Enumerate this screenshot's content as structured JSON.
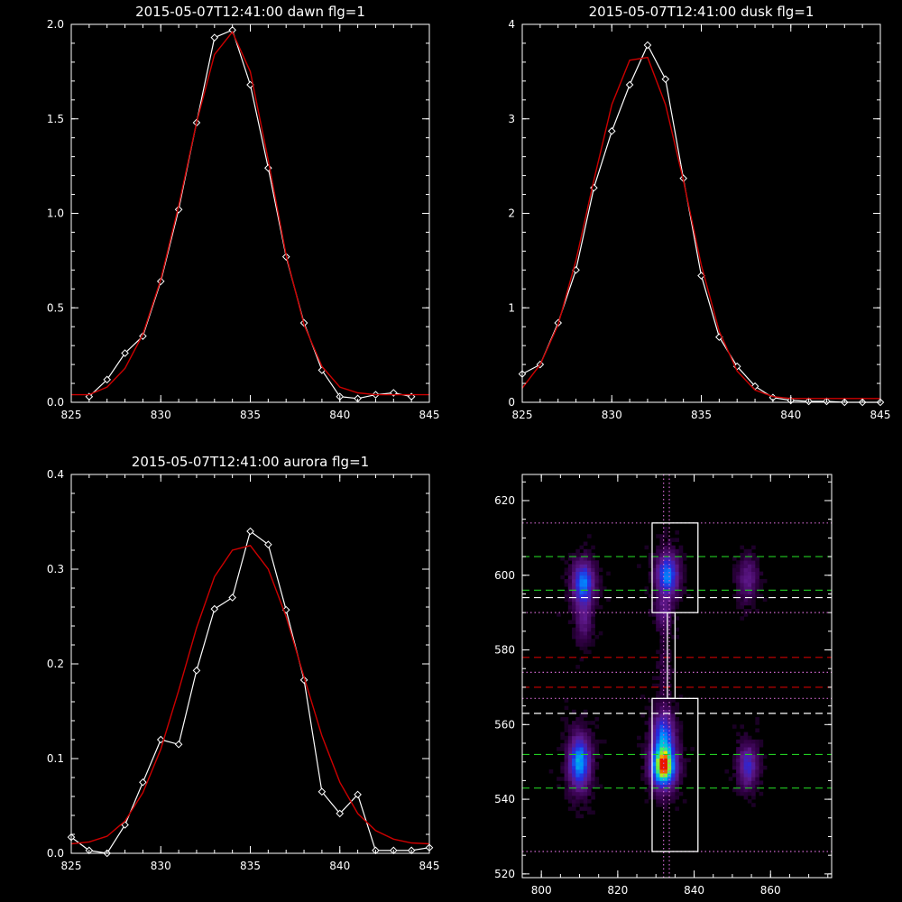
{
  "chart_data": [
    {
      "type": "line",
      "title": "2015-05-07T12:41:00 dawn flg=1",
      "xlim": [
        825,
        845
      ],
      "ylim": [
        0,
        2.0
      ],
      "xticks": [
        "825",
        "830",
        "835",
        "840",
        "845"
      ],
      "yticks": [
        "0.0",
        "0.5",
        "1.0",
        "1.5",
        "2.0"
      ],
      "xticks_v": [
        825,
        830,
        835,
        840,
        845
      ],
      "yticks_v": [
        0,
        0.5,
        1.0,
        1.5,
        2.0
      ],
      "series": [
        {
          "color": "#ffffff",
          "marker": "diamond",
          "x": [
            826,
            827,
            828,
            829,
            830,
            831,
            832,
            833,
            834,
            835,
            836,
            837,
            838,
            839,
            840,
            841,
            842,
            843,
            844
          ],
          "y": [
            0.03,
            0.12,
            0.26,
            0.35,
            0.64,
            1.02,
            1.48,
            1.93,
            1.97,
            1.68,
            1.24,
            0.77,
            0.42,
            0.17,
            0.03,
            0.02,
            0.04,
            0.05,
            0.03
          ]
        },
        {
          "color": "#cc0000",
          "marker": "none",
          "x": [
            825,
            826,
            827,
            828,
            829,
            830,
            831,
            832,
            833,
            834,
            835,
            836,
            837,
            838,
            839,
            840,
            841,
            842,
            843,
            844,
            845
          ],
          "y": [
            0.04,
            0.04,
            0.08,
            0.18,
            0.36,
            0.65,
            1.04,
            1.48,
            1.84,
            1.96,
            1.75,
            1.28,
            0.78,
            0.41,
            0.19,
            0.08,
            0.05,
            0.04,
            0.04,
            0.04,
            0.04
          ]
        }
      ]
    },
    {
      "type": "line",
      "title": "2015-05-07T12:41:00 dusk flg=1",
      "xlim": [
        825,
        845
      ],
      "ylim": [
        0,
        4
      ],
      "xticks": [
        "825",
        "830",
        "835",
        "840",
        "845"
      ],
      "yticks": [
        "0",
        "1",
        "2",
        "3",
        "4"
      ],
      "xticks_v": [
        825,
        830,
        835,
        840,
        845
      ],
      "yticks_v": [
        0,
        1,
        2,
        3,
        4
      ],
      "series": [
        {
          "color": "#ffffff",
          "marker": "diamond",
          "x": [
            825,
            826,
            827,
            828,
            829,
            830,
            831,
            832,
            833,
            834,
            835,
            836,
            837,
            838,
            839,
            840,
            841,
            842,
            843,
            844,
            845
          ],
          "y": [
            0.3,
            0.4,
            0.84,
            1.4,
            2.27,
            2.87,
            3.36,
            3.78,
            3.42,
            2.37,
            1.34,
            0.69,
            0.38,
            0.17,
            0.05,
            0.02,
            0.01,
            0.01,
            0.0,
            0.0,
            0.0
          ]
        },
        {
          "color": "#cc0000",
          "marker": "none",
          "x": [
            825,
            826,
            827,
            828,
            829,
            830,
            831,
            832,
            833,
            834,
            835,
            836,
            837,
            838,
            839,
            840,
            841,
            842,
            843,
            844,
            845
          ],
          "y": [
            0.15,
            0.4,
            0.82,
            1.5,
            2.35,
            3.15,
            3.62,
            3.65,
            3.15,
            2.35,
            1.45,
            0.75,
            0.33,
            0.13,
            0.06,
            0.04,
            0.04,
            0.04,
            0.04,
            0.04,
            0.04
          ]
        }
      ]
    },
    {
      "type": "line",
      "title": "2015-05-07T12:41:00 aurora flg=1",
      "xlim": [
        825,
        845
      ],
      "ylim": [
        0,
        0.4
      ],
      "xticks": [
        "825",
        "830",
        "835",
        "840",
        "845"
      ],
      "yticks": [
        "0.0",
        "0.1",
        "0.2",
        "0.3",
        "0.4"
      ],
      "xticks_v": [
        825,
        830,
        835,
        840,
        845
      ],
      "yticks_v": [
        0,
        0.1,
        0.2,
        0.3,
        0.4
      ],
      "series": [
        {
          "color": "#ffffff",
          "marker": "diamond",
          "x": [
            825,
            826,
            827,
            828,
            829,
            830,
            831,
            832,
            833,
            834,
            835,
            836,
            837,
            838,
            839,
            840,
            841,
            842,
            843,
            844,
            845
          ],
          "y": [
            0.017,
            0.003,
            0.0,
            0.03,
            0.075,
            0.12,
            0.115,
            0.193,
            0.258,
            0.27,
            0.34,
            0.326,
            0.257,
            0.183,
            0.065,
            0.042,
            0.062,
            0.003,
            0.003,
            0.003,
            0.006
          ]
        },
        {
          "color": "#cc0000",
          "marker": "none",
          "x": [
            825,
            826,
            827,
            828,
            829,
            830,
            831,
            832,
            833,
            834,
            835,
            836,
            837,
            838,
            839,
            840,
            841,
            842,
            843,
            844,
            845
          ],
          "y": [
            0.01,
            0.012,
            0.018,
            0.034,
            0.064,
            0.11,
            0.172,
            0.238,
            0.292,
            0.32,
            0.325,
            0.3,
            0.25,
            0.186,
            0.124,
            0.075,
            0.042,
            0.024,
            0.015,
            0.011,
            0.01
          ]
        }
      ]
    },
    {
      "type": "heatmap",
      "title": "",
      "xlim": [
        795,
        876
      ],
      "ylim": [
        519,
        627
      ],
      "xticks": [
        "800",
        "820",
        "840",
        "860"
      ],
      "yticks": [
        "520",
        "540",
        "560",
        "580",
        "600",
        "620"
      ],
      "xticks_v": [
        800,
        820,
        840,
        860
      ],
      "yticks_v": [
        520,
        540,
        560,
        580,
        600,
        620
      ],
      "blobs": [
        {
          "x": 810,
          "y": 550,
          "sx": 2.0,
          "sy": 5.0,
          "a": 0.62
        },
        {
          "x": 811,
          "y": 598,
          "sx": 2.0,
          "sy": 4.0,
          "a": 0.55
        },
        {
          "x": 811,
          "y": 588,
          "sx": 1.5,
          "sy": 4.0,
          "a": 0.22
        },
        {
          "x": 832,
          "y": 549,
          "sx": 2.2,
          "sy": 4.0,
          "a": 1.0
        },
        {
          "x": 832,
          "y": 558,
          "sx": 2.0,
          "sy": 4.0,
          "a": 0.45
        },
        {
          "x": 833,
          "y": 600,
          "sx": 2.0,
          "sy": 4.0,
          "a": 0.58
        },
        {
          "x": 832,
          "y": 590,
          "sx": 1.5,
          "sy": 3.0,
          "a": 0.2
        },
        {
          "x": 854,
          "y": 549,
          "sx": 1.8,
          "sy": 4.0,
          "a": 0.38
        },
        {
          "x": 854,
          "y": 599,
          "sx": 1.8,
          "sy": 4.0,
          "a": 0.25
        },
        {
          "x": 832,
          "y": 575,
          "sx": 1.2,
          "sy": 8.0,
          "a": 0.08
        }
      ],
      "hlines": [
        {
          "y": 614,
          "color": "#cc66cc",
          "style": "dotted"
        },
        {
          "y": 605,
          "color": "#22cc22",
          "style": "dashed"
        },
        {
          "y": 596,
          "color": "#22cc22",
          "style": "dashed"
        },
        {
          "y": 594,
          "color": "#ffffff",
          "style": "dashed"
        },
        {
          "y": 590,
          "color": "#cc66cc",
          "style": "dotted"
        },
        {
          "y": 578,
          "color": "#cc0000",
          "style": "dashed"
        },
        {
          "y": 574,
          "color": "#cc66cc",
          "style": "dotted"
        },
        {
          "y": 570,
          "color": "#cc0000",
          "style": "dashed"
        },
        {
          "y": 567,
          "color": "#cc66cc",
          "style": "dotted"
        },
        {
          "y": 563,
          "color": "#ffffff",
          "style": "dashed"
        },
        {
          "y": 552,
          "color": "#22cc22",
          "style": "dashed"
        },
        {
          "y": 543,
          "color": "#22cc22",
          "style": "dashed"
        },
        {
          "y": 526,
          "color": "#cc66cc",
          "style": "dotted"
        }
      ],
      "vlines": [
        {
          "x": 832,
          "color": "#cc66cc",
          "style": "dotted"
        },
        {
          "x": 833.5,
          "color": "#cc66cc",
          "style": "dotted"
        }
      ],
      "boxes": [
        {
          "x0": 829,
          "x1": 841,
          "y0": 590,
          "y1": 614
        },
        {
          "x0": 829,
          "x1": 841,
          "y0": 526,
          "y1": 567
        },
        {
          "x0": 833,
          "x1": 835,
          "y0": 567,
          "y1": 590
        }
      ]
    }
  ]
}
